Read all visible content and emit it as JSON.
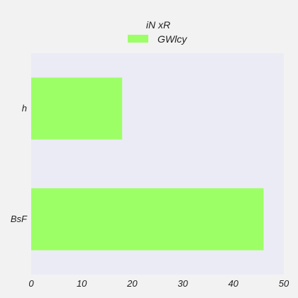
{
  "chart_data": {
    "type": "bar",
    "orientation": "horizontal",
    "categories": [
      "BsF",
      "h"
    ],
    "series": [
      {
        "name": "GWlcy",
        "values": [
          46,
          18
        ],
        "color": "#9dff66"
      }
    ],
    "legend": {
      "title": "iN xR",
      "placement": "top-center"
    },
    "xlim": [
      0,
      50
    ],
    "xticks": [
      0,
      10,
      20,
      30,
      40,
      50
    ],
    "xlabel": "",
    "ylabel": "",
    "grid": false,
    "background": "#ebebf5",
    "page_background": "#f2f2f2"
  }
}
